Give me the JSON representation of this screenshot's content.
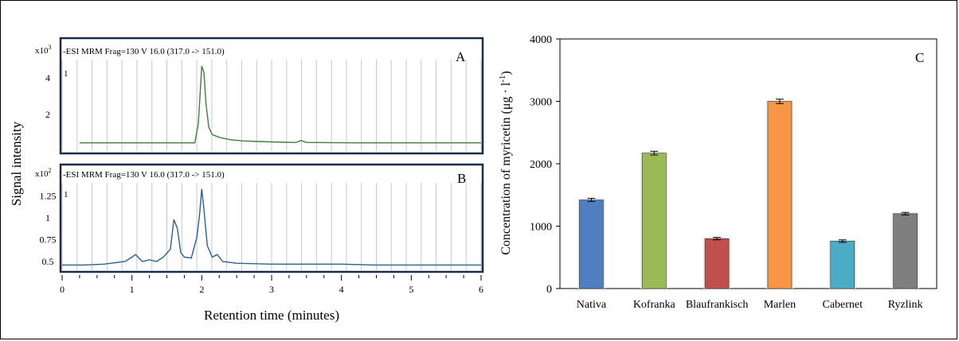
{
  "colors": {
    "trace_a": "#3f7f3f",
    "trace_b": "#2e5f8f",
    "panel_border": "#1a2b4c",
    "grid": "#c8c8c8",
    "bar_colors": [
      "#4f7fbf",
      "#9bbb59",
      "#c0504d",
      "#f79646",
      "#4bacc6",
      "#7f7f7f"
    ]
  },
  "left": {
    "ylabel": "Signal intensity",
    "xlabel": "Retention time (minutes)",
    "x_ticks": [
      "0",
      "1",
      "2",
      "3",
      "4",
      "5",
      "6"
    ]
  },
  "chart_data": [
    {
      "type": "line",
      "panel": "A",
      "header": "-ESI MRM Frag=130 V 16.0 (317.0 -> 151.0)",
      "scale_label": "x10",
      "scale_exp": "3",
      "trace_label": "1",
      "y_ticks": [
        "4",
        "2"
      ],
      "y_tick_values": [
        4,
        2
      ],
      "xlim": [
        0,
        6
      ],
      "ylim": [
        0,
        5
      ],
      "series": [
        {
          "x": [
            0.25,
            1.9,
            1.95,
            1.98,
            2.0,
            2.03,
            2.06,
            2.1,
            2.15,
            2.25,
            2.4,
            2.6,
            2.8,
            3.0,
            3.2,
            3.35,
            3.42,
            3.5,
            3.8,
            4.2,
            5.0,
            6.0
          ],
          "y": [
            0.45,
            0.45,
            1.5,
            3.4,
            4.65,
            4.3,
            2.6,
            1.3,
            0.9,
            0.75,
            0.62,
            0.55,
            0.52,
            0.5,
            0.48,
            0.47,
            0.58,
            0.47,
            0.46,
            0.45,
            0.45,
            0.45
          ]
        }
      ]
    },
    {
      "type": "line",
      "panel": "B",
      "header": "-ESI MRM Frag=130 V 16.0 (317.0 -> 151.0)",
      "scale_label": "x10",
      "scale_exp": "2",
      "trace_label": "1",
      "y_ticks": [
        "1.25",
        "1",
        "0.75",
        "0.5"
      ],
      "y_tick_values": [
        1.25,
        1,
        0.75,
        0.5
      ],
      "xlim": [
        0,
        6
      ],
      "ylim": [
        0.4,
        1.4
      ],
      "series": [
        {
          "x": [
            0,
            0.3,
            0.6,
            0.9,
            1.0,
            1.05,
            1.1,
            1.15,
            1.25,
            1.35,
            1.45,
            1.55,
            1.6,
            1.65,
            1.7,
            1.75,
            1.85,
            1.93,
            1.97,
            2.0,
            2.03,
            2.08,
            2.15,
            2.22,
            2.3,
            2.5,
            3.0,
            3.5,
            4.0,
            4.5,
            5.0,
            5.5,
            6.0
          ],
          "y": [
            0.46,
            0.46,
            0.47,
            0.5,
            0.55,
            0.58,
            0.54,
            0.5,
            0.52,
            0.5,
            0.55,
            0.64,
            0.98,
            0.88,
            0.6,
            0.55,
            0.54,
            0.78,
            1.05,
            1.33,
            1.1,
            0.68,
            0.55,
            0.58,
            0.5,
            0.48,
            0.47,
            0.47,
            0.47,
            0.46,
            0.46,
            0.46,
            0.46
          ]
        }
      ]
    },
    {
      "type": "bar",
      "panel": "C",
      "ylabel": "Concentration of  myricetin (μg · l",
      "ylabel_sup": "-1",
      "ylabel_end": ")",
      "categories": [
        "Nativa",
        "Kofranka",
        "Blaufrankisch",
        "Marlen",
        "Cabernet",
        "Ryzlink"
      ],
      "values": [
        1420,
        2170,
        800,
        3000,
        760,
        1200
      ],
      "errors": [
        25,
        30,
        20,
        35,
        20,
        20
      ],
      "y_ticks": [
        "0",
        "1000",
        "2000",
        "3000",
        "4000"
      ],
      "ylim": [
        0,
        4000
      ]
    }
  ]
}
